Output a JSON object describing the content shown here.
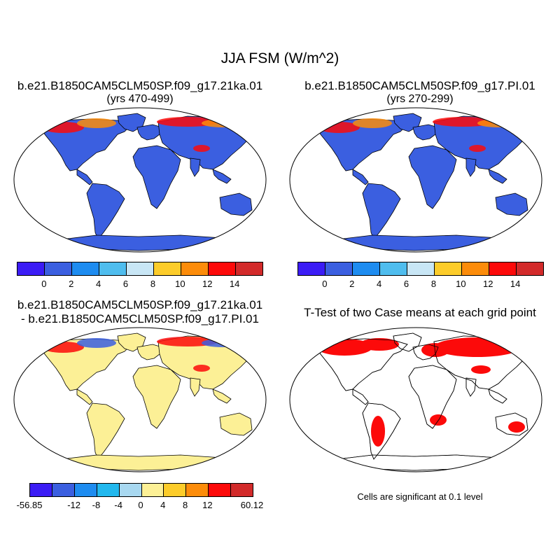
{
  "title": "JJA FSM (W/m^2)",
  "panels": [
    {
      "title_line1": "b.e21.B1850CAM5CLM50SP.f09_g17.21ka.01",
      "title_line2": "(yrs 470-499)",
      "colorbar": "abs"
    },
    {
      "title_line1": "b.e21.B1850CAM5CLM50SP.f09_g17.PI.01",
      "title_line2": "(yrs 270-299)",
      "colorbar": "abs"
    },
    {
      "title_line1": "b.e21.B1850CAM5CLM50SP.f09_g17.21ka.01",
      "title_line2": "- b.e21.B1850CAM5CLM50SP.f09_g17.PI.01",
      "colorbar": "diff"
    },
    {
      "title_line1": "T-Test of two Case means at each grid point",
      "note": "Cells are significant at 0.1 level"
    }
  ],
  "colorbars": {
    "abs": {
      "colors": [
        "#3b1cf5",
        "#3b5fe0",
        "#1e8cf0",
        "#4fbdee",
        "#c8e6f5",
        "#fccc2a",
        "#fc8c0a",
        "#fc0a0a",
        "#d22a2a"
      ],
      "labels": [
        "0",
        "2",
        "4",
        "6",
        "8",
        "10",
        "12",
        "14"
      ]
    },
    "diff": {
      "colors": [
        "#3b1cf5",
        "#3b5fe0",
        "#1e8cf0",
        "#22b8ee",
        "#a8d8f0",
        "#fcf096",
        "#fccc2a",
        "#fc8c0a",
        "#fc0a0a",
        "#d22a2a"
      ],
      "labels": [
        "-56.85",
        "-12",
        "-8",
        "-4",
        "0",
        "4",
        "8",
        "12",
        "60.12"
      ]
    }
  },
  "colors": {
    "ocean": "#ffffff",
    "land_abs": "#3b5fe0",
    "land_diff": "#fcf096",
    "significant": "#fc0a0a"
  }
}
